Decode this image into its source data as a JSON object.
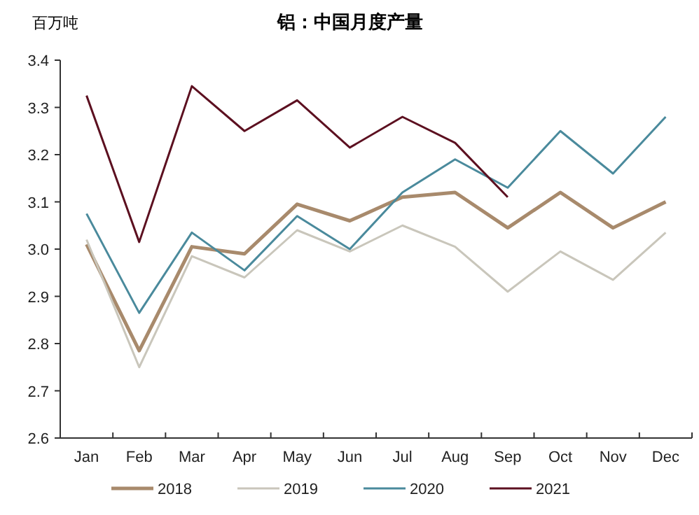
{
  "chart_data": {
    "type": "line",
    "title": "铝：中国月度产量",
    "ylabel": "百万吨",
    "categories": [
      "Jan",
      "Feb",
      "Mar",
      "Apr",
      "May",
      "Jun",
      "Jul",
      "Aug",
      "Sep",
      "Oct",
      "Nov",
      "Dec"
    ],
    "series": [
      {
        "name": "2018",
        "color": "#a88a6c",
        "values": [
          3.01,
          2.785,
          3.005,
          2.99,
          3.095,
          3.06,
          3.11,
          3.12,
          3.045,
          3.12,
          3.045,
          3.1
        ]
      },
      {
        "name": "2019",
        "color": "#c9c6bb",
        "values": [
          3.02,
          2.75,
          2.985,
          2.94,
          3.04,
          2.995,
          3.05,
          3.005,
          2.91,
          2.995,
          2.935,
          3.035
        ]
      },
      {
        "name": "2020",
        "color": "#4a8a9c",
        "values": [
          3.075,
          2.865,
          3.035,
          2.955,
          3.07,
          3.0,
          3.12,
          3.19,
          3.13,
          3.25,
          3.16,
          3.28
        ]
      },
      {
        "name": "2021",
        "color": "#5c1020",
        "values": [
          3.325,
          3.015,
          3.345,
          3.25,
          3.315,
          3.215,
          3.28,
          3.225,
          3.11,
          null,
          null,
          null
        ]
      }
    ],
    "ylim": [
      2.6,
      3.4
    ],
    "yticks": [
      {
        "value": 2.6,
        "label": "2.6"
      },
      {
        "value": 2.7,
        "label": "2.7"
      },
      {
        "value": 2.8,
        "label": "2.8"
      },
      {
        "value": 2.9,
        "label": "2.9"
      },
      {
        "value": 3.0,
        "label": "3.0"
      },
      {
        "value": 3.1,
        "label": "3.1"
      },
      {
        "value": 3.2,
        "label": "3.2"
      },
      {
        "value": 3.3,
        "label": "3.3"
      },
      {
        "value": 3.4,
        "label": "3.4"
      }
    ],
    "legend": "bottom"
  }
}
